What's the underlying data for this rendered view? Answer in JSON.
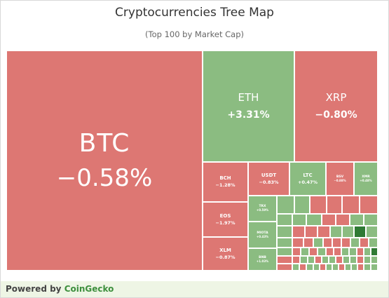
{
  "chart": {
    "title": "Cryptocurrencies Tree Map",
    "subtitle": "(Top 100 by Market Cap)"
  },
  "colors": {
    "negative": "#dd7773",
    "positive": "#8bbc81",
    "strong_positive": "#2f7a34",
    "footer_bg": "#eef5e5",
    "brand": "#3d8f3d"
  },
  "footer": {
    "prefix": "Powered by ",
    "brand": "CoinGecko"
  },
  "chart_data": {
    "type": "treemap",
    "title": "Cryptocurrencies Tree Map",
    "subtitle": "(Top 100 by Market Cap)",
    "tiles": [
      {
        "symbol": "BTC",
        "change": "−0.58%",
        "change_value": -0.58
      },
      {
        "symbol": "ETH",
        "change": "+3.31%",
        "change_value": 3.31
      },
      {
        "symbol": "XRP",
        "change": "−0.80%",
        "change_value": -0.8
      },
      {
        "symbol": "BCH",
        "change": "−1.28%",
        "change_value": -1.28
      },
      {
        "symbol": "USDT",
        "change": "−0.83%",
        "change_value": -0.83
      },
      {
        "symbol": "LTC",
        "change": "+0.47%",
        "change_value": 0.47
      },
      {
        "symbol": "BSV",
        "change": "−0.88%",
        "change_value": -0.88
      },
      {
        "symbol": "XMR",
        "change": "+0.48%",
        "change_value": 0.48
      },
      {
        "symbol": "EOS",
        "change": "−1.97%",
        "change_value": -1.97
      },
      {
        "symbol": "XLM",
        "change": "−0.87%",
        "change_value": -0.87
      },
      {
        "symbol": "TRX",
        "change": "+0.59%",
        "change_value": 0.59
      },
      {
        "symbol": "MIOTA",
        "change": "+0.43%",
        "change_value": 0.43
      },
      {
        "symbol": "BNB",
        "change": "+1.03%",
        "change_value": 1.03
      }
    ]
  }
}
